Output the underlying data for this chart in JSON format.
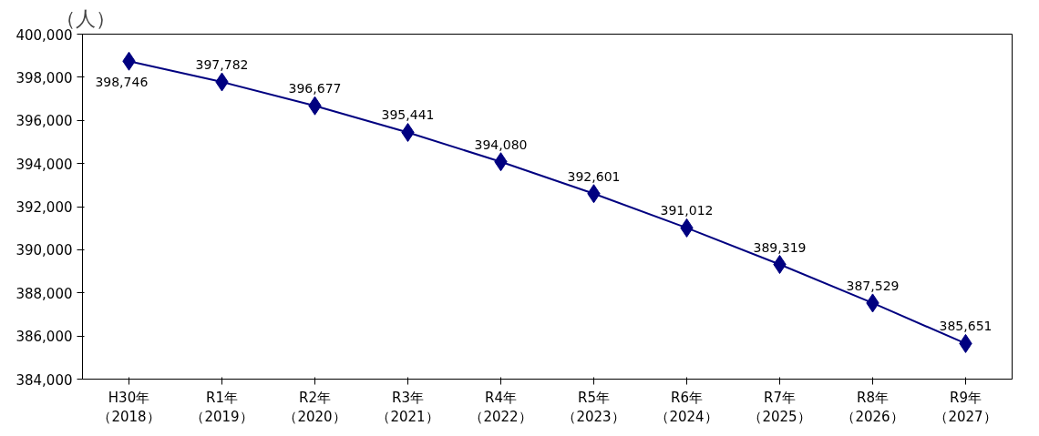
{
  "chart_data": {
    "type": "line",
    "ylabel": "（人）",
    "categories": [
      "H30年（2018）",
      "R1年（2019）",
      "R2年（2020）",
      "R3年（2021）",
      "R4年（2022）",
      "R5年（2023）",
      "R6年（2024）",
      "R7年（2025）",
      "R8年（2026）",
      "R9年（2027）"
    ],
    "series": [
      {
        "color": "#000080",
        "values": [
          398746,
          397782,
          396677,
          395441,
          394080,
          392601,
          391012,
          389319,
          387529,
          385651
        ],
        "value_labels": [
          "398,746",
          "397,782",
          "396,677",
          "395,441",
          "394,080",
          "392,601",
          "391,012",
          "389,319",
          "387,529",
          "385,651"
        ]
      }
    ],
    "ylim": [
      384000,
      400000
    ],
    "yticks": [
      {
        "value": 384000,
        "label": "384,000"
      },
      {
        "value": 386000,
        "label": "386,000"
      },
      {
        "value": 388000,
        "label": "388,000"
      },
      {
        "value": 390000,
        "label": "390,000"
      },
      {
        "value": 392000,
        "label": "392,000"
      },
      {
        "value": 394000,
        "label": "394,000"
      },
      {
        "value": 396000,
        "label": "396,000"
      },
      {
        "value": 398000,
        "label": "398,000"
      },
      {
        "value": 400000,
        "label": "400,000"
      }
    ],
    "marker": "diamond",
    "line_style": "solid",
    "grid": false
  }
}
